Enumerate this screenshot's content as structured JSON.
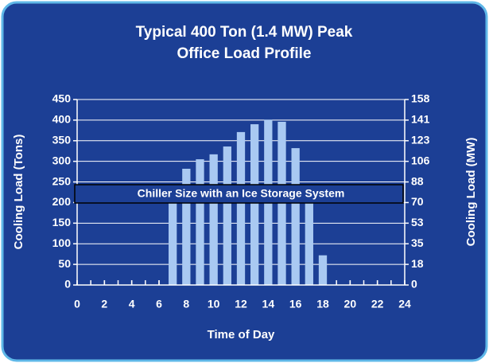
{
  "chart_data": {
    "type": "bar",
    "title": "Typical 400 Ton (1.4 MW) Peak",
    "subtitle": "Office Load Profile",
    "x_label": "Time of Day",
    "y_label": "Cooling Load (Tons)",
    "y2_label": "Cooling Load (MW)",
    "annotation": "Chiller Size with an Ice Storage System",
    "x": [
      7,
      8,
      9,
      10,
      11,
      12,
      13,
      14,
      15,
      16,
      17,
      18
    ],
    "values": [
      240,
      282,
      305,
      317,
      336,
      371,
      390,
      401,
      396,
      332,
      230,
      72
    ],
    "color": "#a9c9f2",
    "xlim": [
      0,
      24
    ],
    "xticks": [
      0,
      2,
      4,
      6,
      8,
      10,
      12,
      14,
      16,
      18,
      20,
      22,
      24
    ],
    "ylim": [
      0,
      450
    ],
    "yticks": [
      0,
      50,
      100,
      150,
      200,
      250,
      300,
      350,
      400,
      450
    ],
    "y2lim": [
      0,
      158.25
    ],
    "y2ticks": [
      {
        "value": 0,
        "label": "0"
      },
      {
        "value": 17.58,
        "label": "18"
      },
      {
        "value": 35.17,
        "label": "35"
      },
      {
        "value": 52.75,
        "label": "53"
      },
      {
        "value": 70.33,
        "label": "70"
      },
      {
        "value": 87.92,
        "label": "88"
      },
      {
        "value": 105.5,
        "label": "106"
      },
      {
        "value": 123.08,
        "label": "123"
      },
      {
        "value": 140.67,
        "label": "141"
      },
      {
        "value": 158.25,
        "label": "158"
      }
    ],
    "grid": true
  }
}
